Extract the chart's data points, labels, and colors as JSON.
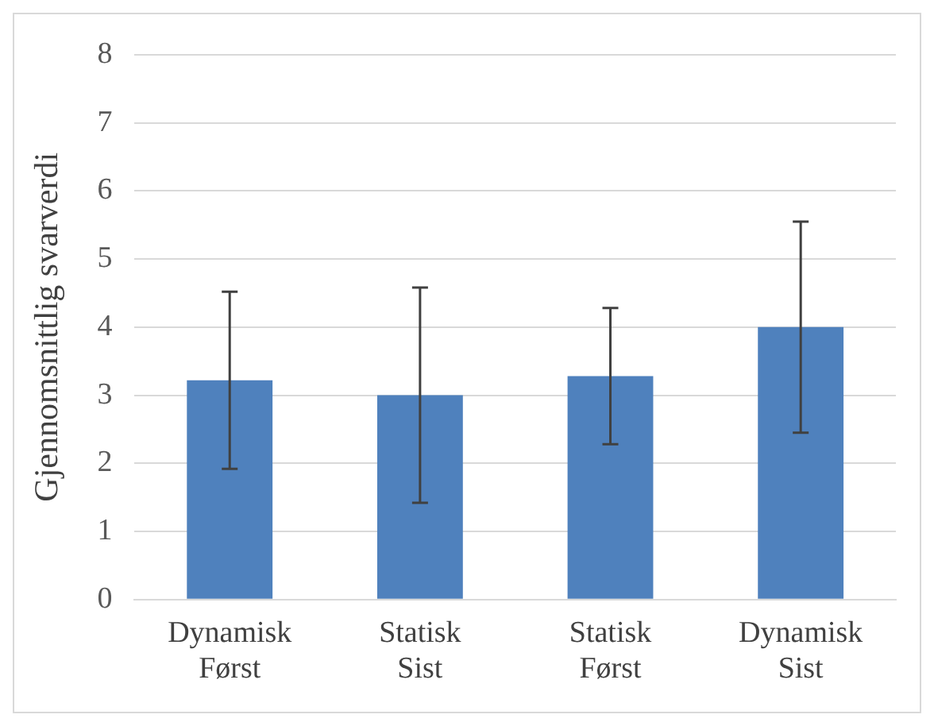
{
  "chart_data": {
    "type": "bar",
    "ylabel": "Gjennomsnittlig svarverdi",
    "categories": [
      "Dynamisk Først",
      "Statisk Sist",
      "Statisk Først",
      "Dynamisk Sist"
    ],
    "values": [
      3.22,
      3.0,
      3.28,
      4.0
    ],
    "errors": [
      1.3,
      1.58,
      1.0,
      1.55
    ],
    "color": "#4f81bd",
    "ylim": [
      0,
      8
    ],
    "yticks": [
      0,
      1,
      2,
      3,
      4,
      5,
      6,
      7,
      8
    ],
    "grid": "y",
    "legend": false
  }
}
